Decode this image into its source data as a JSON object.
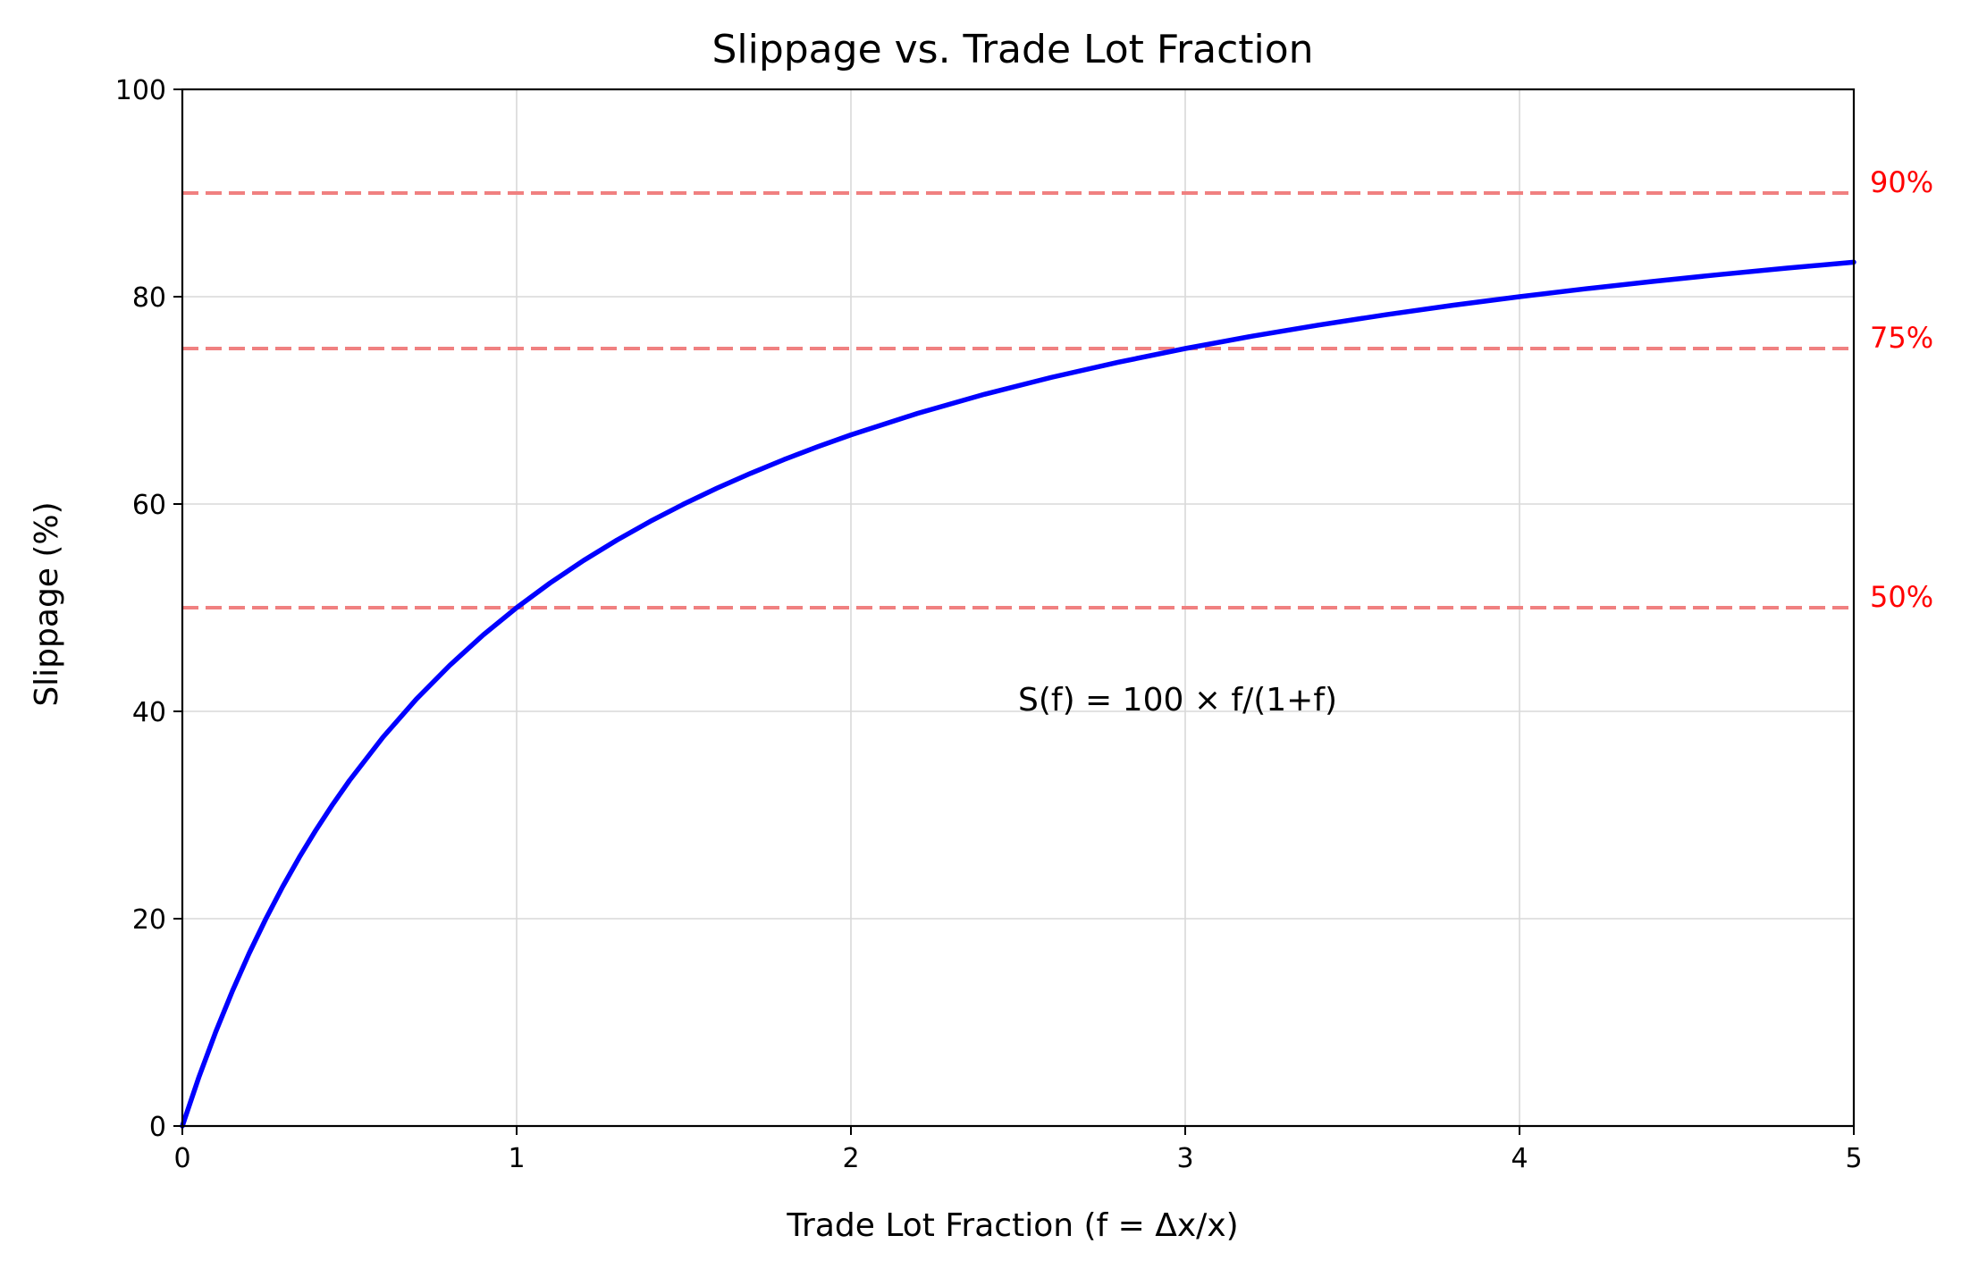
{
  "chart_data": {
    "type": "line",
    "title": "Slippage vs. Trade Lot Fraction",
    "xlabel": "Trade Lot Fraction (f = Δx/x)",
    "ylabel": "Slippage (%)",
    "xlim": [
      0,
      5
    ],
    "ylim": [
      0,
      100
    ],
    "grid": true,
    "x_ticks": [
      0,
      1,
      2,
      3,
      4,
      5
    ],
    "x_tick_labels": [
      "0",
      "1",
      "2",
      "3",
      "4",
      "5"
    ],
    "y_ticks": [
      0,
      20,
      40,
      60,
      80,
      100
    ],
    "y_tick_labels": [
      "0",
      "20",
      "40",
      "60",
      "80",
      "100"
    ],
    "series": [
      {
        "color": "#0000ff",
        "x": [
          0,
          0.05,
          0.1,
          0.15,
          0.2,
          0.25,
          0.3,
          0.35,
          0.4,
          0.45,
          0.5,
          0.6,
          0.7,
          0.8,
          0.9,
          1.0,
          1.1,
          1.2,
          1.3,
          1.4,
          1.5,
          1.6,
          1.7,
          1.8,
          1.9,
          2.0,
          2.2,
          2.4,
          2.6,
          2.8,
          3.0,
          3.2,
          3.4,
          3.6,
          3.8,
          4.0,
          4.2,
          4.4,
          4.6,
          4.8,
          5.0
        ],
        "y": [
          0,
          4.76,
          9.09,
          13.04,
          16.67,
          20.0,
          23.08,
          25.93,
          28.57,
          31.03,
          33.33,
          37.5,
          41.18,
          44.44,
          47.37,
          50.0,
          52.38,
          54.55,
          56.52,
          58.33,
          60.0,
          61.54,
          62.96,
          64.29,
          65.52,
          66.67,
          68.75,
          70.59,
          72.22,
          73.68,
          75.0,
          76.19,
          77.27,
          78.26,
          79.17,
          80.0,
          80.77,
          81.48,
          82.14,
          82.76,
          83.33
        ]
      }
    ],
    "reference_lines": [
      {
        "y": 90,
        "label": "90%",
        "color": "#f08080"
      },
      {
        "y": 75,
        "label": "75%",
        "color": "#f08080"
      },
      {
        "y": 50,
        "label": "50%",
        "color": "#f08080"
      }
    ],
    "reference_label_color": "#ff0000",
    "annotation": {
      "text": "S(f) = 100 × f/(1+f)",
      "x": 2.5,
      "y": 40
    }
  }
}
